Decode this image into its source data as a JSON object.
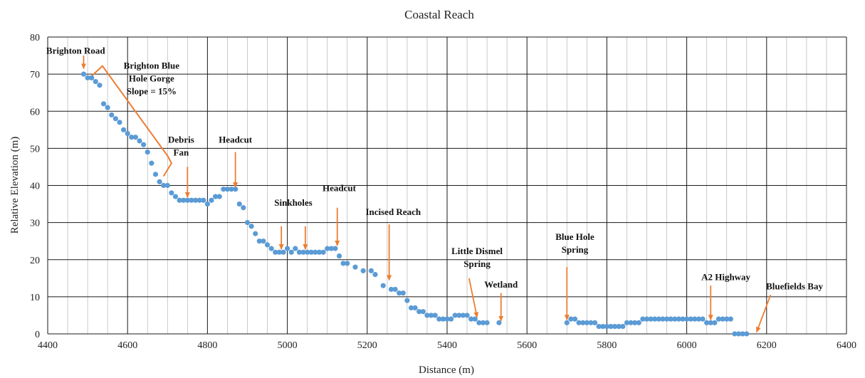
{
  "chart_data": {
    "type": "scatter",
    "title": "Coastal Reach",
    "xlabel": "Distance (m)",
    "ylabel": "Relative Elevation (m)",
    "xlim": [
      4400,
      6400
    ],
    "ylim": [
      0,
      80
    ],
    "x_ticks": [
      4400,
      4600,
      4800,
      5000,
      5200,
      5400,
      5600,
      5800,
      6000,
      6200,
      6400
    ],
    "y_ticks": [
      0,
      10,
      20,
      30,
      40,
      50,
      60,
      70,
      80
    ],
    "x_grid_major_step": 200,
    "x_grid_minor_step": 50,
    "grid": true,
    "legend": "none",
    "colors": {
      "points": "#5b9bd5",
      "annotation": "#ed7d31"
    },
    "series": [
      {
        "marker": "circle",
        "x": [
          4490,
          4500,
          4510,
          4520,
          4530,
          4540,
          4550,
          4560,
          4570,
          4580,
          4590,
          4600,
          4610,
          4620,
          4630,
          4640,
          4650,
          4660,
          4670,
          4680,
          4690,
          4700,
          4710,
          4720,
          4730,
          4740,
          4750,
          4760,
          4770,
          4780,
          4790,
          4800,
          4810,
          4820,
          4830,
          4840,
          4850,
          4860,
          4870,
          4880,
          4890,
          4900,
          4910,
          4920,
          4930,
          4940,
          4950,
          4960,
          4970,
          4980,
          4990,
          5000,
          5010,
          5020,
          5030,
          5040,
          5050,
          5060,
          5070,
          5080,
          5090,
          5100,
          5110,
          5120,
          5130,
          5140,
          5150,
          5170,
          5190,
          5210,
          5220,
          5240,
          5260,
          5270,
          5280,
          5290,
          5300,
          5310,
          5320,
          5330,
          5340,
          5350,
          5360,
          5370,
          5380,
          5390,
          5400,
          5410,
          5420,
          5430,
          5440,
          5450,
          5460,
          5470,
          5480,
          5490,
          5500,
          5530,
          5700,
          5710,
          5720,
          5730,
          5740,
          5750,
          5760,
          5770,
          5780,
          5790,
          5800,
          5810,
          5820,
          5830,
          5840,
          5850,
          5860,
          5870,
          5880,
          5890,
          5900,
          5910,
          5920,
          5930,
          5940,
          5950,
          5960,
          5970,
          5980,
          5990,
          6000,
          6010,
          6020,
          6030,
          6040,
          6050,
          6060,
          6070,
          6080,
          6090,
          6100,
          6110,
          6120,
          6130,
          6140,
          6150
        ],
        "y": [
          70,
          69,
          69,
          68,
          67,
          62,
          61,
          59,
          58,
          57,
          55,
          54,
          53,
          53,
          52,
          51,
          49,
          46,
          43,
          41,
          40,
          40,
          38,
          37,
          36,
          36,
          36,
          36,
          36,
          36,
          36,
          35,
          36,
          37,
          37,
          39,
          39,
          39,
          39,
          35,
          34,
          30,
          29,
          27,
          25,
          25,
          24,
          23,
          22,
          22,
          22,
          23,
          22,
          23,
          22,
          22,
          22,
          22,
          22,
          22,
          22,
          23,
          23,
          23,
          21,
          19,
          19,
          18,
          17,
          17,
          16,
          13,
          12,
          12,
          11,
          11,
          9,
          7,
          7,
          6,
          6,
          5,
          5,
          5,
          4,
          4,
          4,
          4,
          5,
          5,
          5,
          5,
          4,
          4,
          3,
          3,
          3,
          3,
          3,
          4,
          4,
          3,
          3,
          3,
          3,
          3,
          2,
          2,
          2,
          2,
          2,
          2,
          2,
          3,
          3,
          3,
          3,
          4,
          4,
          4,
          4,
          4,
          4,
          4,
          4,
          4,
          4,
          4,
          4,
          4,
          4,
          4,
          4,
          3,
          3,
          3,
          4,
          4,
          4,
          4,
          0,
          0,
          0,
          0
        ]
      }
    ],
    "annotations": [
      {
        "text": [
          "Brighton Road"
        ],
        "arrow_from": [
          4490,
          75
        ],
        "arrow_to": [
          4490,
          71.5
        ]
      },
      {
        "text": [
          "Brighton Blue",
          "Hole Gorge",
          "Slope = 15%"
        ]
      },
      {
        "text": [
          "Debris",
          "Fan"
        ],
        "arrow_from": [
          4750,
          45
        ],
        "arrow_to": [
          4750,
          36.8
        ]
      },
      {
        "text": [
          "Headcut"
        ],
        "arrow_from": [
          4870,
          49
        ],
        "arrow_to": [
          4870,
          39.5
        ]
      },
      {
        "text": [
          "Sinkholes"
        ],
        "arrow_from": [
          4985,
          29
        ],
        "arrow_to": [
          4985,
          22.8
        ]
      },
      {
        "text": [
          "Sinkholes"
        ],
        "arrow_from": [
          5045,
          29
        ],
        "arrow_to": [
          5045,
          22.8
        ],
        "hidden_label": true
      },
      {
        "text": [
          "Headcut"
        ],
        "arrow_from": [
          5125,
          34
        ],
        "arrow_to": [
          5125,
          23.8
        ]
      },
      {
        "text": [
          "Incised Reach"
        ],
        "arrow_from": [
          5255,
          29.5
        ],
        "arrow_to": [
          5255,
          14.5
        ]
      },
      {
        "text": [
          "Little Dismel",
          "Spring"
        ],
        "arrow_from": [
          5455,
          15
        ],
        "arrow_to": [
          5475,
          4.5
        ]
      },
      {
        "text": [
          "Wetland"
        ],
        "arrow_from": [
          5535,
          11
        ],
        "arrow_to": [
          5535,
          3.5
        ]
      },
      {
        "text": [
          "Blue Hole",
          "Spring"
        ],
        "arrow_from": [
          5700,
          18
        ],
        "arrow_to": [
          5700,
          3.8
        ]
      },
      {
        "text": [
          "A2 Highway"
        ],
        "arrow_from": [
          6060,
          13
        ],
        "arrow_to": [
          6060,
          3.8
        ]
      },
      {
        "text": [
          "Bluefields Bay"
        ],
        "arrow_from": [
          6210,
          10.5
        ],
        "arrow_to": [
          6175,
          0.5
        ]
      }
    ]
  }
}
